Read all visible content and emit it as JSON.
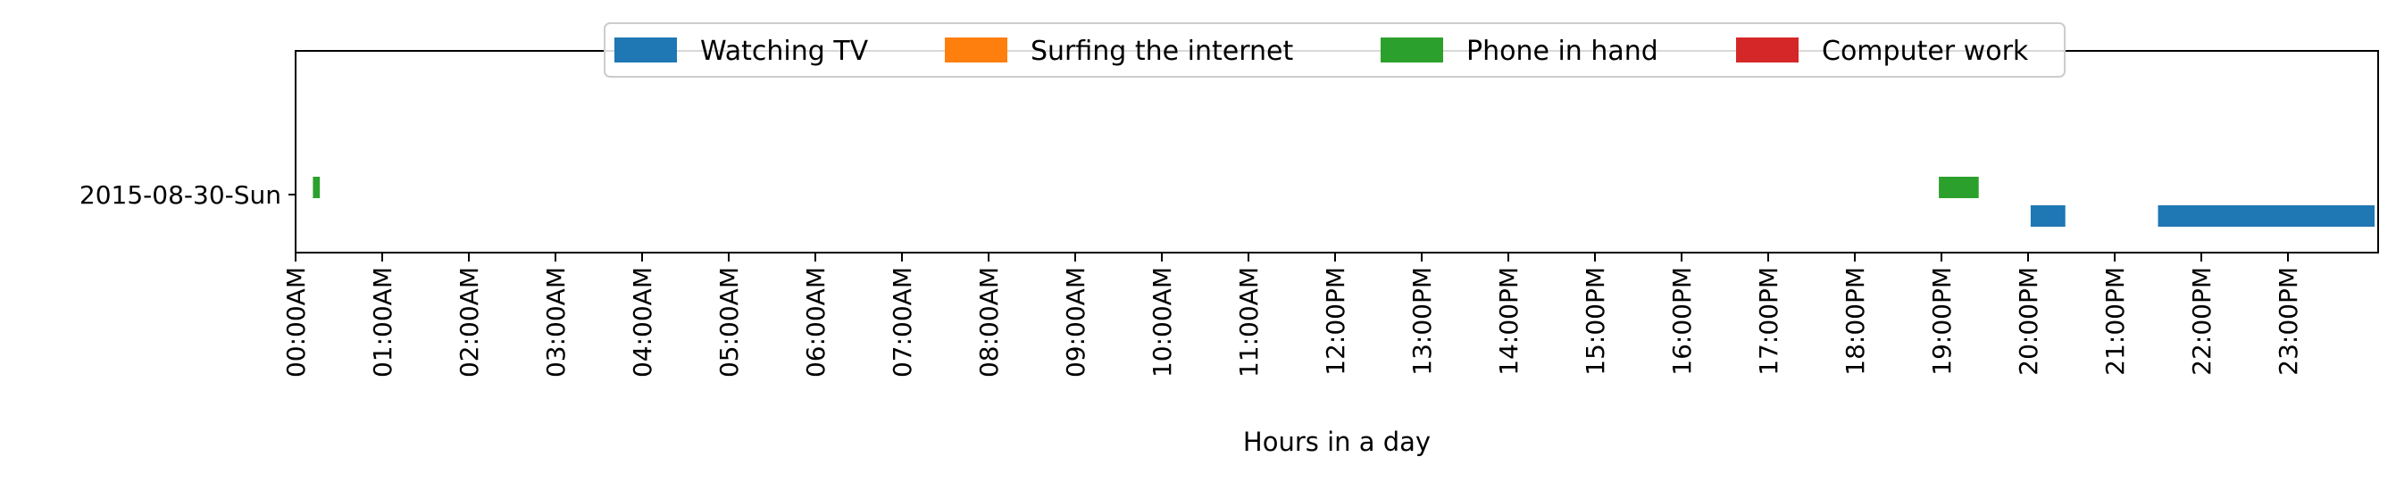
{
  "chart_data": {
    "type": "bar",
    "orientation": "horizontal",
    "xlabel": "Hours in a day",
    "ylabel": "",
    "title": "",
    "xlim": [
      0,
      24
    ],
    "x_ticks": [
      "00:00AM",
      "01:00AM",
      "02:00AM",
      "03:00AM",
      "04:00AM",
      "05:00AM",
      "06:00AM",
      "07:00AM",
      "08:00AM",
      "09:00AM",
      "10:00AM",
      "11:00AM",
      "12:00PM",
      "13:00PM",
      "14:00PM",
      "15:00PM",
      "16:00PM",
      "17:00PM",
      "18:00PM",
      "19:00PM",
      "20:00PM",
      "21:00PM",
      "22:00PM",
      "23:00PM"
    ],
    "categories": [
      "2015-08-30-Sun"
    ],
    "grid": false,
    "legend_position": "top-center",
    "series": [
      {
        "name": "Watching TV",
        "color": "#1f77b4",
        "intervals": [
          {
            "day": "2015-08-30-Sun",
            "start": 20.03,
            "end": 20.43
          },
          {
            "day": "2015-08-30-Sun",
            "start": 21.5,
            "end": 24.0
          }
        ]
      },
      {
        "name": "Surfing the internet",
        "color": "#ff7f0e",
        "intervals": []
      },
      {
        "name": "Phone in hand",
        "color": "#2ca02c",
        "intervals": [
          {
            "day": "2015-08-30-Sun",
            "start": 0.2,
            "end": 0.28
          },
          {
            "day": "2015-08-30-Sun",
            "start": 18.97,
            "end": 19.43
          }
        ]
      },
      {
        "name": "Computer work",
        "color": "#d62728",
        "intervals": []
      }
    ]
  }
}
